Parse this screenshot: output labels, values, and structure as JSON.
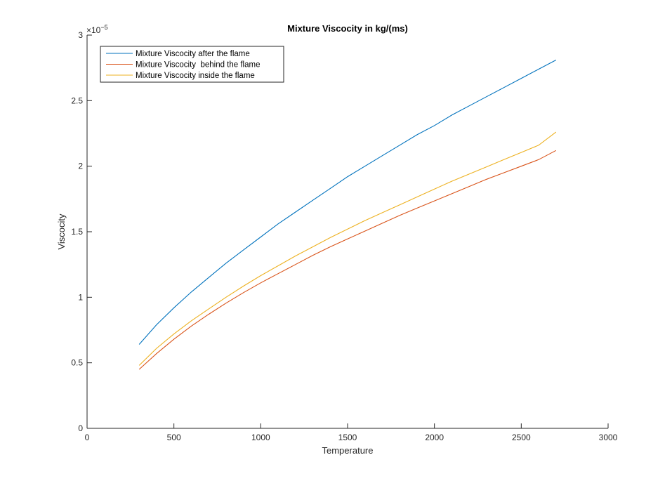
{
  "chart_data": {
    "type": "line",
    "title": "Mixture Viscocity in kg/(ms)",
    "xlabel": "Temperature",
    "ylabel": "Viscocity",
    "xlim": [
      0,
      3000
    ],
    "ylim": [
      0,
      3e-05
    ],
    "y_multiplier": {
      "prefix": "×10",
      "exponent": "−5"
    },
    "xticks": [
      0,
      500,
      1000,
      1500,
      2000,
      2500,
      3000
    ],
    "xtick_labels": [
      "0",
      "500",
      "1000",
      "1500",
      "2000",
      "2500",
      "3000"
    ],
    "yticks": [
      0,
      5e-06,
      1e-05,
      1.5e-05,
      2e-05,
      2.5e-05,
      3e-05
    ],
    "ytick_labels": [
      "0",
      "0.5",
      "1",
      "1.5",
      "2",
      "2.5",
      "3"
    ],
    "grid": false,
    "legend_position": "top-left",
    "x": [
      300,
      400,
      500,
      600,
      700,
      800,
      900,
      1000,
      1100,
      1200,
      1300,
      1400,
      1500,
      1600,
      1700,
      1800,
      1900,
      2000,
      2100,
      2200,
      2300,
      2400,
      2500,
      2600,
      2700
    ],
    "series": [
      {
        "name": "Mixture Viscocity after the flame",
        "color": "#0072BD",
        "values": [
          6.4e-06,
          7.9e-06,
          9.2e-06,
          1.04e-05,
          1.15e-05,
          1.26e-05,
          1.36e-05,
          1.46e-05,
          1.56e-05,
          1.65e-05,
          1.74e-05,
          1.83e-05,
          1.92e-05,
          2e-05,
          2.08e-05,
          2.16e-05,
          2.24e-05,
          2.31e-05,
          2.39e-05,
          2.46e-05,
          2.53e-05,
          2.6e-05,
          2.67e-05,
          2.74e-05,
          2.81e-05
        ]
      },
      {
        "name": "Mixture Viscocity  behind the flame",
        "color": "#D95319",
        "values": [
          4.5e-06,
          5.7e-06,
          6.8e-06,
          7.8e-06,
          8.7e-06,
          9.55e-06,
          1.035e-05,
          1.11e-05,
          1.18e-05,
          1.25e-05,
          1.32e-05,
          1.385e-05,
          1.445e-05,
          1.505e-05,
          1.565e-05,
          1.625e-05,
          1.68e-05,
          1.735e-05,
          1.79e-05,
          1.845e-05,
          1.9e-05,
          1.95e-05,
          2e-05,
          2.05e-05,
          2.12e-05
        ]
      },
      {
        "name": "Mixture Viscocity inside the flame",
        "color": "#EDB120",
        "values": [
          4.8e-06,
          6.1e-06,
          7.2e-06,
          8.2e-06,
          9.1e-06,
          1e-05,
          1.085e-05,
          1.165e-05,
          1.24e-05,
          1.315e-05,
          1.385e-05,
          1.455e-05,
          1.52e-05,
          1.585e-05,
          1.645e-05,
          1.705e-05,
          1.765e-05,
          1.825e-05,
          1.885e-05,
          1.94e-05,
          1.995e-05,
          2.05e-05,
          2.105e-05,
          2.16e-05,
          2.26e-05
        ]
      }
    ]
  }
}
